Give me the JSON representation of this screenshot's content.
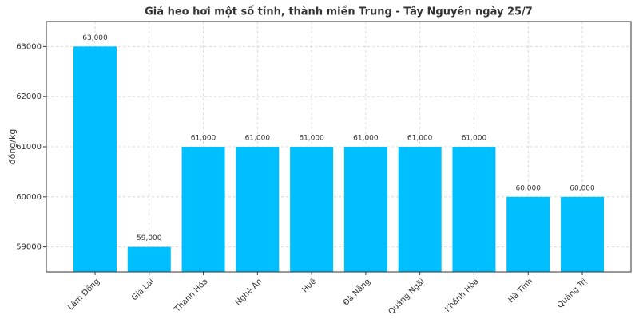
{
  "chart_data": {
    "type": "bar",
    "title": "Giá heo hơi một số tỉnh, thành miền Trung - Tây Nguyên ngày 25/7",
    "y_label": "đồng/kg",
    "categories": [
      "Lâm Đồng",
      "Gia Lai",
      "Thanh Hóa",
      "Nghệ An",
      "Huế",
      "Đà Nẵng",
      "Quảng Ngãi",
      "Khánh Hòa",
      "Hà Tĩnh",
      "Quảng Trị"
    ],
    "values": [
      63000,
      59000,
      61000,
      61000,
      61000,
      61000,
      61000,
      61000,
      60000,
      60000
    ],
    "value_labels": [
      "63,000",
      "59,000",
      "61,000",
      "61,000",
      "61,000",
      "61,000",
      "61,000",
      "61,000",
      "60,000",
      "60,000"
    ],
    "color": "#00bfff",
    "ylim": [
      58500,
      63500
    ],
    "yticks": [
      59000,
      60000,
      61000,
      62000,
      63000
    ],
    "grid": true
  }
}
